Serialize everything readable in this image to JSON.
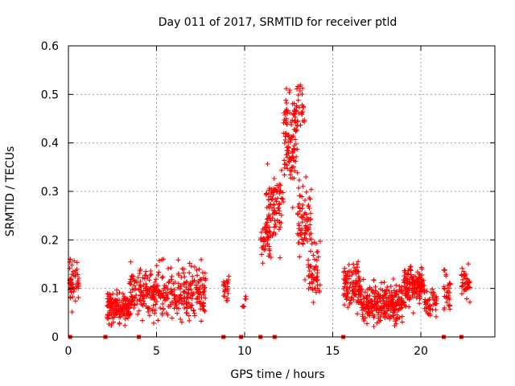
{
  "chart_data": {
    "type": "scatter",
    "title": "Day 011 of 2017, SRMTID for receiver ptld",
    "xlabel": "GPS time / hours",
    "ylabel": "SRMTID / TECUs",
    "xlim": [
      0,
      24.2
    ],
    "ylim": [
      0,
      0.6
    ],
    "x_ticks": [
      0,
      5,
      10,
      15,
      20
    ],
    "x_tick_labels": [
      "0",
      "5",
      "10",
      "15",
      "20"
    ],
    "y_ticks": [
      0,
      0.1,
      0.2,
      0.3,
      0.4,
      0.5,
      0.6
    ],
    "y_tick_labels": [
      "0",
      "0.1",
      "0.2",
      "0.3",
      "0.4",
      "0.5",
      "0.6"
    ],
    "grid": true,
    "marker": "+",
    "color": "#ff0000",
    "zero_markers": [
      0.1,
      2.1,
      4.0,
      8.8,
      9.8,
      10.9,
      11.7,
      15.6,
      21.3,
      22.3
    ],
    "clusters": [
      {
        "x_start": 0.05,
        "x_end": 0.6,
        "y_center": 0.11,
        "y_spread": 0.045,
        "count": 55
      },
      {
        "x_start": 2.2,
        "x_end": 3.5,
        "y_center": 0.06,
        "y_spread": 0.028,
        "count": 140
      },
      {
        "x_start": 3.5,
        "x_end": 5.0,
        "y_center": 0.09,
        "y_spread": 0.05,
        "count": 140
      },
      {
        "x_start": 5.0,
        "x_end": 7.8,
        "y_center": 0.09,
        "y_spread": 0.045,
        "count": 230
      },
      {
        "x_start": 8.8,
        "x_end": 9.1,
        "y_center": 0.1,
        "y_spread": 0.03,
        "count": 25
      },
      {
        "x_start": 9.8,
        "x_end": 10.1,
        "y_center": 0.075,
        "y_spread": 0.015,
        "count": 6
      },
      {
        "x_start": 10.9,
        "x_end": 11.5,
        "y_center": 0.2,
        "y_spread": 0.035,
        "count": 45
      },
      {
        "x_start": 11.2,
        "x_end": 12.2,
        "y_center": 0.27,
        "y_spread": 0.06,
        "count": 90
      },
      {
        "x_start": 12.2,
        "x_end": 13.0,
        "y_center": 0.4,
        "y_spread": 0.09,
        "count": 110
      },
      {
        "x_start": 12.7,
        "x_end": 13.4,
        "y_center": 0.47,
        "y_spread": 0.045,
        "count": 35
      },
      {
        "x_start": 13.0,
        "x_end": 13.8,
        "y_center": 0.25,
        "y_spread": 0.07,
        "count": 80
      },
      {
        "x_start": 13.6,
        "x_end": 14.3,
        "y_center": 0.13,
        "y_spread": 0.06,
        "count": 55
      },
      {
        "x_start": 15.6,
        "x_end": 16.6,
        "y_center": 0.1,
        "y_spread": 0.04,
        "count": 110
      },
      {
        "x_start": 16.6,
        "x_end": 19.0,
        "y_center": 0.07,
        "y_spread": 0.035,
        "count": 260
      },
      {
        "x_start": 19.0,
        "x_end": 20.2,
        "y_center": 0.105,
        "y_spread": 0.035,
        "count": 150
      },
      {
        "x_start": 20.2,
        "x_end": 20.9,
        "y_center": 0.07,
        "y_spread": 0.03,
        "count": 45
      },
      {
        "x_start": 21.3,
        "x_end": 21.7,
        "y_center": 0.09,
        "y_spread": 0.035,
        "count": 30
      },
      {
        "x_start": 22.3,
        "x_end": 22.8,
        "y_center": 0.11,
        "y_spread": 0.03,
        "count": 40
      }
    ]
  }
}
